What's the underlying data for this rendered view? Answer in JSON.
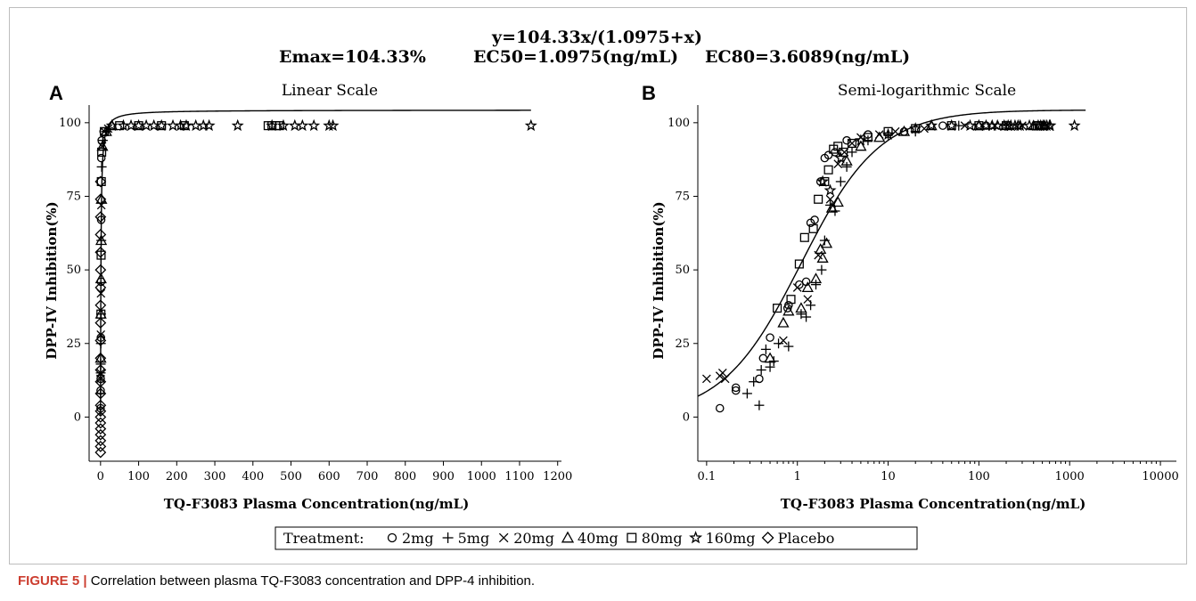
{
  "header": {
    "equation": "y=104.33x/(1.0975+x)",
    "emax": "Emax=104.33%",
    "ec50": "EC50=1.0975(ng/mL)",
    "ec80": "EC80=3.6089(ng/mL)"
  },
  "legend": {
    "title": "Treatment:",
    "items": [
      {
        "symbol": "circle",
        "label": "2mg"
      },
      {
        "symbol": "plus",
        "label": "5mg"
      },
      {
        "symbol": "x",
        "label": "20mg"
      },
      {
        "symbol": "triangle",
        "label": "40mg"
      },
      {
        "symbol": "square",
        "label": "80mg"
      },
      {
        "symbol": "star",
        "label": "160mg"
      },
      {
        "symbol": "diamond",
        "label": "Placebo"
      }
    ]
  },
  "caption": {
    "label": "FIGURE 5 |",
    "text": "Correlation between plasma TQ-F3083 concentration and DPP-4 inhibition."
  },
  "chart_data": [
    {
      "panel": "A",
      "type": "scatter",
      "title": "Linear Scale",
      "xlabel": "TQ-F3083 Plasma Concentration(ng/mL)",
      "ylabel": "DPP-IV Inhibition(%)",
      "xscale": "linear",
      "xlim": [
        -30,
        1210
      ],
      "ylim": [
        -15,
        106
      ],
      "xticks": [
        0,
        100,
        200,
        300,
        400,
        500,
        600,
        700,
        800,
        900,
        1000,
        1100,
        1200
      ],
      "xtick_labels": [
        "0",
        "100",
        "200",
        "300",
        "400",
        "500",
        "600",
        "700",
        "800",
        "900",
        "1000",
        "1100",
        "1200"
      ],
      "yticks": [
        0,
        25,
        50,
        75,
        100
      ],
      "ytick_labels": [
        "0",
        "25",
        "50",
        "75",
        "100"
      ],
      "fit": {
        "emax": 104.33,
        "ec50": 1.0975
      },
      "series": [
        {
          "symbol": "diamond",
          "points": [
            [
              0,
              -12
            ],
            [
              0,
              -10
            ],
            [
              0,
              -8
            ],
            [
              0,
              -6
            ],
            [
              0,
              -4
            ],
            [
              0,
              -2
            ],
            [
              0,
              0
            ],
            [
              0,
              2
            ],
            [
              0,
              4
            ],
            [
              0,
              8
            ],
            [
              0,
              12
            ],
            [
              0,
              16
            ],
            [
              0,
              20
            ],
            [
              0,
              26
            ],
            [
              0,
              32
            ],
            [
              0,
              38
            ],
            [
              0,
              44
            ],
            [
              0,
              50
            ],
            [
              0,
              56
            ],
            [
              0,
              62
            ],
            [
              0,
              68
            ],
            [
              0,
              74
            ],
            [
              0,
              80
            ]
          ]
        },
        {
          "symbol": "circle",
          "points": [
            [
              0.1,
              3
            ],
            [
              0.2,
              9
            ],
            [
              0.4,
              13
            ],
            [
              0.9,
              27
            ],
            [
              1.2,
              46
            ],
            [
              1.6,
              67
            ],
            [
              2,
              88
            ],
            [
              3,
              94
            ],
            [
              8,
              97
            ]
          ]
        },
        {
          "symbol": "plus",
          "points": [
            [
              0.3,
              8
            ],
            [
              0.4,
              15
            ],
            [
              0.5,
              18
            ],
            [
              0.8,
              25
            ],
            [
              1.3,
              35
            ],
            [
              2,
              60
            ],
            [
              3,
              85
            ],
            [
              6,
              94
            ],
            [
              15,
              97
            ]
          ]
        },
        {
          "symbol": "x",
          "points": [
            [
              0.1,
              13
            ],
            [
              0.15,
              15
            ],
            [
              0.8,
              28
            ],
            [
              1.1,
              42
            ],
            [
              2,
              72
            ],
            [
              4,
              92
            ],
            [
              10,
              97
            ],
            [
              20,
              98
            ]
          ]
        },
        {
          "symbol": "triangle",
          "points": [
            [
              0.5,
              20
            ],
            [
              0.8,
              35
            ],
            [
              1.2,
              47
            ],
            [
              1.8,
              60
            ],
            [
              2.5,
              74
            ],
            [
              5,
              92
            ],
            [
              15,
              97
            ],
            [
              30,
              99
            ]
          ]
        },
        {
          "symbol": "square",
          "points": [
            [
              1,
              35
            ],
            [
              1.5,
              55
            ],
            [
              2,
              80
            ],
            [
              3,
              90
            ],
            [
              10,
              97
            ],
            [
              50,
              99
            ],
            [
              100,
              99
            ],
            [
              160,
              99
            ],
            [
              220,
              99
            ],
            [
              440,
              99
            ],
            [
              450,
              99
            ],
            [
              460,
              99
            ],
            [
              470,
              99
            ]
          ]
        },
        {
          "symbol": "star",
          "points": [
            [
              30,
              99
            ],
            [
              60,
              99
            ],
            [
              80,
              99
            ],
            [
              100,
              99
            ],
            [
              120,
              99
            ],
            [
              140,
              99
            ],
            [
              160,
              99
            ],
            [
              190,
              99
            ],
            [
              210,
              99
            ],
            [
              225,
              99
            ],
            [
              250,
              99
            ],
            [
              270,
              99
            ],
            [
              285,
              99
            ],
            [
              360,
              99
            ],
            [
              450,
              99
            ],
            [
              480,
              99
            ],
            [
              510,
              99
            ],
            [
              530,
              99
            ],
            [
              560,
              99
            ],
            [
              600,
              99
            ],
            [
              610,
              99
            ],
            [
              1130,
              99
            ]
          ]
        }
      ]
    },
    {
      "panel": "B",
      "type": "scatter",
      "title": "Semi-logarithmic Scale",
      "xlabel": "TQ-F3083 Plasma Concentration(ng/mL)",
      "ylabel": "DPP-IV Inhibition(%)",
      "xscale": "log",
      "xlim": [
        0.08,
        15000
      ],
      "ylim": [
        -15,
        106
      ],
      "xticks": [
        0.1,
        1,
        10,
        100,
        1000,
        10000
      ],
      "xtick_labels": [
        "0.1",
        "1",
        "10",
        "100",
        "1000",
        "10000"
      ],
      "yticks": [
        0,
        25,
        50,
        75,
        100
      ],
      "ytick_labels": [
        "0",
        "25",
        "50",
        "75",
        "100"
      ],
      "fit": {
        "emax": 104.33,
        "ec50": 1.0975
      },
      "series": [
        {
          "symbol": "circle",
          "points": [
            [
              0.14,
              3
            ],
            [
              0.21,
              10
            ],
            [
              0.21,
              9
            ],
            [
              0.38,
              13
            ],
            [
              0.42,
              20
            ],
            [
              0.5,
              27
            ],
            [
              0.78,
              37
            ],
            [
              0.8,
              38
            ],
            [
              1.05,
              45
            ],
            [
              1.25,
              46
            ],
            [
              1.4,
              66
            ],
            [
              1.55,
              67
            ],
            [
              1.8,
              80
            ],
            [
              2,
              88
            ],
            [
              2.2,
              89
            ],
            [
              2.6,
              90
            ],
            [
              3.5,
              94
            ],
            [
              6,
              96
            ],
            [
              15,
              97
            ],
            [
              40,
              99
            ],
            [
              120,
              99
            ]
          ]
        },
        {
          "symbol": "plus",
          "points": [
            [
              0.28,
              8
            ],
            [
              0.33,
              12
            ],
            [
              0.38,
              4
            ],
            [
              0.4,
              16
            ],
            [
              0.45,
              23
            ],
            [
              0.5,
              17
            ],
            [
              0.55,
              19
            ],
            [
              0.62,
              25
            ],
            [
              0.8,
              24
            ],
            [
              1.1,
              35
            ],
            [
              1.25,
              34
            ],
            [
              1.4,
              38
            ],
            [
              1.6,
              45
            ],
            [
              1.85,
              50
            ],
            [
              2,
              60
            ],
            [
              2.3,
              72
            ],
            [
              2.6,
              70
            ],
            [
              3,
              80
            ],
            [
              3.5,
              85
            ],
            [
              4,
              90
            ],
            [
              6,
              94
            ],
            [
              10,
              96
            ],
            [
              20,
              97
            ],
            [
              60,
              99
            ],
            [
              200,
              99
            ]
          ]
        },
        {
          "symbol": "x",
          "points": [
            [
              0.1,
              13
            ],
            [
              0.14,
              14
            ],
            [
              0.15,
              15
            ],
            [
              0.16,
              13
            ],
            [
              0.7,
              26
            ],
            [
              1,
              44
            ],
            [
              1.3,
              40
            ],
            [
              1.7,
              55
            ],
            [
              2.3,
              74
            ],
            [
              2.8,
              86
            ],
            [
              3.3,
              90
            ],
            [
              4,
              93
            ],
            [
              5,
              95
            ],
            [
              8,
              96
            ],
            [
              12,
              97
            ],
            [
              25,
              98
            ],
            [
              70,
              99
            ],
            [
              150,
              99
            ],
            [
              300,
              99
            ]
          ]
        },
        {
          "symbol": "triangle",
          "points": [
            [
              0.5,
              20
            ],
            [
              0.7,
              32
            ],
            [
              0.8,
              36
            ],
            [
              1.1,
              37
            ],
            [
              1.3,
              44
            ],
            [
              1.6,
              47
            ],
            [
              1.8,
              57
            ],
            [
              1.9,
              54
            ],
            [
              2.1,
              59
            ],
            [
              2.4,
              71
            ],
            [
              2.8,
              73
            ],
            [
              3.5,
              87
            ],
            [
              5,
              92
            ],
            [
              8,
              95
            ],
            [
              15,
              97
            ],
            [
              30,
              99
            ],
            [
              100,
              99
            ],
            [
              400,
              99
            ]
          ]
        },
        {
          "symbol": "square",
          "points": [
            [
              0.6,
              37
            ],
            [
              0.85,
              40
            ],
            [
              1.05,
              52
            ],
            [
              1.2,
              61
            ],
            [
              1.5,
              64
            ],
            [
              1.7,
              74
            ],
            [
              2,
              80
            ],
            [
              2.2,
              84
            ],
            [
              2.5,
              91
            ],
            [
              2.8,
              92
            ],
            [
              3.2,
              90
            ],
            [
              4,
              93
            ],
            [
              6,
              95
            ],
            [
              10,
              97
            ],
            [
              20,
              98
            ],
            [
              50,
              99
            ],
            [
              100,
              99
            ],
            [
              200,
              99
            ],
            [
              440,
              99
            ],
            [
              460,
              99
            ],
            [
              480,
              99
            ]
          ]
        },
        {
          "symbol": "star",
          "points": [
            [
              1.9,
              80
            ],
            [
              2.3,
              77
            ],
            [
              3,
              88
            ],
            [
              5,
              94
            ],
            [
              10,
              96
            ],
            [
              20,
              98
            ],
            [
              30,
              99
            ],
            [
              50,
              99
            ],
            [
              80,
              99
            ],
            [
              100,
              99
            ],
            [
              120,
              99
            ],
            [
              140,
              99
            ],
            [
              160,
              99
            ],
            [
              190,
              99
            ],
            [
              210,
              99
            ],
            [
              225,
              99
            ],
            [
              250,
              99
            ],
            [
              270,
              99
            ],
            [
              285,
              99
            ],
            [
              360,
              99
            ],
            [
              450,
              99
            ],
            [
              480,
              99
            ],
            [
              510,
              99
            ],
            [
              530,
              99
            ],
            [
              560,
              99
            ],
            [
              600,
              99
            ],
            [
              610,
              99
            ],
            [
              1130,
              99
            ]
          ]
        }
      ]
    }
  ]
}
